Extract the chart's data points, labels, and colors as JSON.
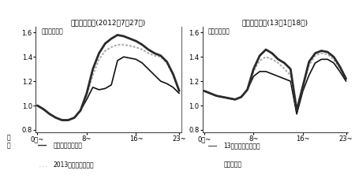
{
  "summer_title": "夏のピーク日(2012年7月27日)",
  "winter_title": "冬のピーク日(13年1月18日)",
  "ylabel": "億キロワット",
  "xtick_labels": [
    "0時~",
    "8~",
    "16~",
    "23~"
  ],
  "yticks": [
    0.8,
    1.0,
    1.2,
    1.4,
    1.6
  ],
  "ylim": [
    0.78,
    1.65
  ],
  "summer_no_solar": [
    1.0,
    0.97,
    0.93,
    0.9,
    0.88,
    0.88,
    0.9,
    0.96,
    1.1,
    1.3,
    1.43,
    1.51,
    1.55,
    1.58,
    1.57,
    1.55,
    1.53,
    1.5,
    1.46,
    1.43,
    1.41,
    1.36,
    1.26,
    1.12
  ],
  "summer_2013_installed": [
    1.0,
    0.97,
    0.93,
    0.9,
    0.88,
    0.88,
    0.9,
    0.96,
    1.08,
    1.25,
    1.38,
    1.45,
    1.48,
    1.5,
    1.5,
    1.49,
    1.48,
    1.46,
    1.43,
    1.41,
    1.4,
    1.35,
    1.25,
    1.12
  ],
  "summer_all_operating": [
    1.0,
    0.97,
    0.93,
    0.9,
    0.88,
    0.88,
    0.9,
    0.96,
    1.05,
    1.15,
    1.13,
    1.14,
    1.17,
    1.37,
    1.4,
    1.39,
    1.38,
    1.35,
    1.3,
    1.25,
    1.2,
    1.18,
    1.15,
    1.1
  ],
  "winter_no_solar": [
    1.12,
    1.1,
    1.08,
    1.07,
    1.06,
    1.05,
    1.07,
    1.13,
    1.3,
    1.41,
    1.46,
    1.43,
    1.38,
    1.35,
    1.3,
    0.96,
    1.16,
    1.36,
    1.43,
    1.45,
    1.44,
    1.4,
    1.32,
    1.22
  ],
  "winter_2013_installed": [
    1.12,
    1.1,
    1.08,
    1.07,
    1.06,
    1.05,
    1.07,
    1.13,
    1.28,
    1.37,
    1.4,
    1.38,
    1.35,
    1.3,
    1.25,
    0.96,
    1.15,
    1.33,
    1.41,
    1.43,
    1.42,
    1.38,
    1.3,
    1.22
  ],
  "winter_all_operating": [
    1.12,
    1.1,
    1.08,
    1.07,
    1.06,
    1.05,
    1.07,
    1.13,
    1.24,
    1.28,
    1.28,
    1.26,
    1.24,
    1.22,
    1.2,
    0.93,
    1.12,
    1.25,
    1.35,
    1.38,
    1.38,
    1.35,
    1.28,
    1.2
  ],
  "color_no_solar": "#2a2a2a",
  "color_2013_installed": "#aaaaaa",
  "color_all_operating": "#111111",
  "lw_no_solar": 2.0,
  "lw_2013_installed": 1.4,
  "lw_all_operating": 1.2,
  "legend_line1": "太陽光発電未導入",
  "legend_line2": "2013年度末の導入量",
  "legend_line3_1": "13年度末の認定設備",
  "legend_line3_2": "が全て稼働",
  "background_color": "#ffffff"
}
